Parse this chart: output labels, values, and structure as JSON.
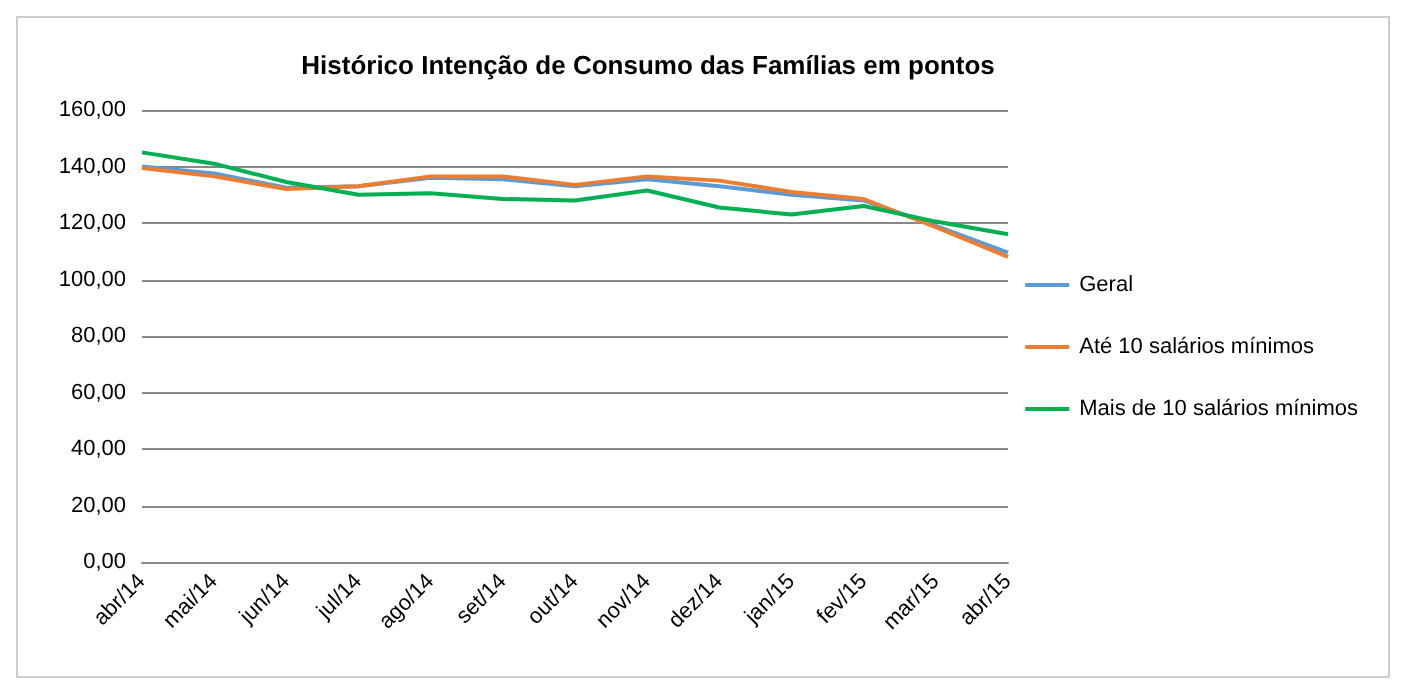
{
  "chart_data": {
    "type": "line",
    "title": "Histórico Intenção de Consumo das Famílias em pontos",
    "categories": [
      "abr/14",
      "mai/14",
      "jun/14",
      "jul/14",
      "ago/14",
      "set/14",
      "out/14",
      "nov/14",
      "dez/14",
      "jan/15",
      "fev/15",
      "mar/15",
      "abr/15"
    ],
    "series": [
      {
        "name": "Geral",
        "color": "#5b9bd5",
        "values": [
          140,
          137.5,
          132.5,
          133,
          136,
          135.5,
          133,
          135.5,
          133,
          130,
          128,
          119,
          109.5
        ]
      },
      {
        "name": "Até 10 salários mínimos",
        "color": "#ed7d31",
        "values": [
          139.5,
          136.5,
          132,
          133,
          136.5,
          136.5,
          133.5,
          136.5,
          135,
          131,
          128.5,
          118.5,
          108
        ]
      },
      {
        "name": "Mais de 10 salários mínimos",
        "color": "#00b050",
        "values": [
          145,
          141,
          134.5,
          130,
          130.5,
          128.5,
          128,
          131.5,
          125.5,
          123,
          126,
          120.5,
          116
        ]
      }
    ],
    "ylim": [
      0,
      160
    ],
    "yticks": [
      {
        "value": 0,
        "label": "0,00"
      },
      {
        "value": 20,
        "label": "20,00"
      },
      {
        "value": 40,
        "label": "40,00"
      },
      {
        "value": 60,
        "label": "60,00"
      },
      {
        "value": 80,
        "label": "80,00"
      },
      {
        "value": 100,
        "label": "100,00"
      },
      {
        "value": 120,
        "label": "120,00"
      },
      {
        "value": 140,
        "label": "140,00"
      },
      {
        "value": 160,
        "label": "160,00"
      }
    ],
    "grid": "y",
    "legend": "right",
    "marker": "none",
    "line_style": "solid"
  }
}
